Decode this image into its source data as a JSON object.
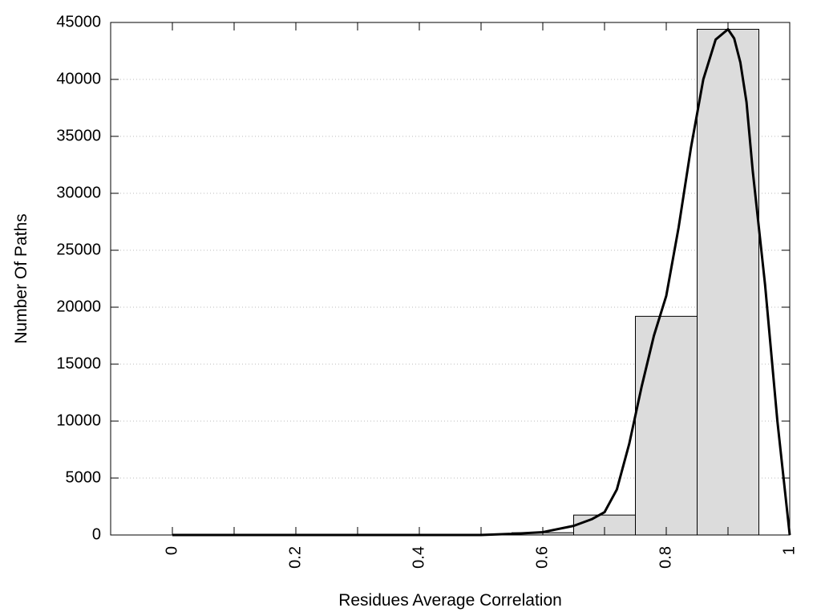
{
  "chart_data": {
    "type": "bar",
    "xlabel": "Residues Average Correlation",
    "ylabel": "Number Of Paths",
    "xlim": [
      -0.1,
      1.0
    ],
    "ylim": [
      0,
      45000
    ],
    "grid": "horizontal dotted",
    "x_ticks": [
      "0",
      "0.2",
      "0.4",
      "0.6",
      "0.8",
      "1"
    ],
    "y_ticks": [
      "0",
      "5000",
      "10000",
      "15000",
      "20000",
      "25000",
      "30000",
      "35000",
      "40000",
      "45000"
    ],
    "bins": [
      {
        "x0": 0.0,
        "x1": 0.1,
        "value": 0
      },
      {
        "x0": 0.1,
        "x1": 0.2,
        "value": 0
      },
      {
        "x0": 0.2,
        "x1": 0.3,
        "value": 0
      },
      {
        "x0": 0.3,
        "x1": 0.4,
        "value": 0
      },
      {
        "x0": 0.4,
        "x1": 0.5,
        "value": 0
      },
      {
        "x0": 0.5,
        "x1": 0.6,
        "value": 30
      },
      {
        "x0": 0.6,
        "x1": 0.7,
        "value": 200
      },
      {
        "x0": 0.7,
        "x1": 0.8,
        "value": 1750
      },
      {
        "x0": 0.8,
        "x1": 0.9,
        "value": 19200
      },
      {
        "x0": 0.9,
        "x1": 1.0,
        "value": 44400
      }
    ],
    "fit_curve": {
      "x": [
        0.0,
        0.5,
        0.55,
        0.6,
        0.65,
        0.68,
        0.7,
        0.72,
        0.74,
        0.76,
        0.78,
        0.8,
        0.82,
        0.84,
        0.86,
        0.88,
        0.9,
        0.91,
        0.92,
        0.93,
        0.94,
        0.96,
        0.98,
        1.0
      ],
      "y": [
        0,
        0,
        100,
        250,
        800,
        1400,
        2000,
        4000,
        8000,
        13000,
        17500,
        21000,
        27000,
        34000,
        40000,
        43500,
        44400,
        43600,
        41500,
        38000,
        32000,
        22000,
        10000,
        0
      ]
    }
  }
}
